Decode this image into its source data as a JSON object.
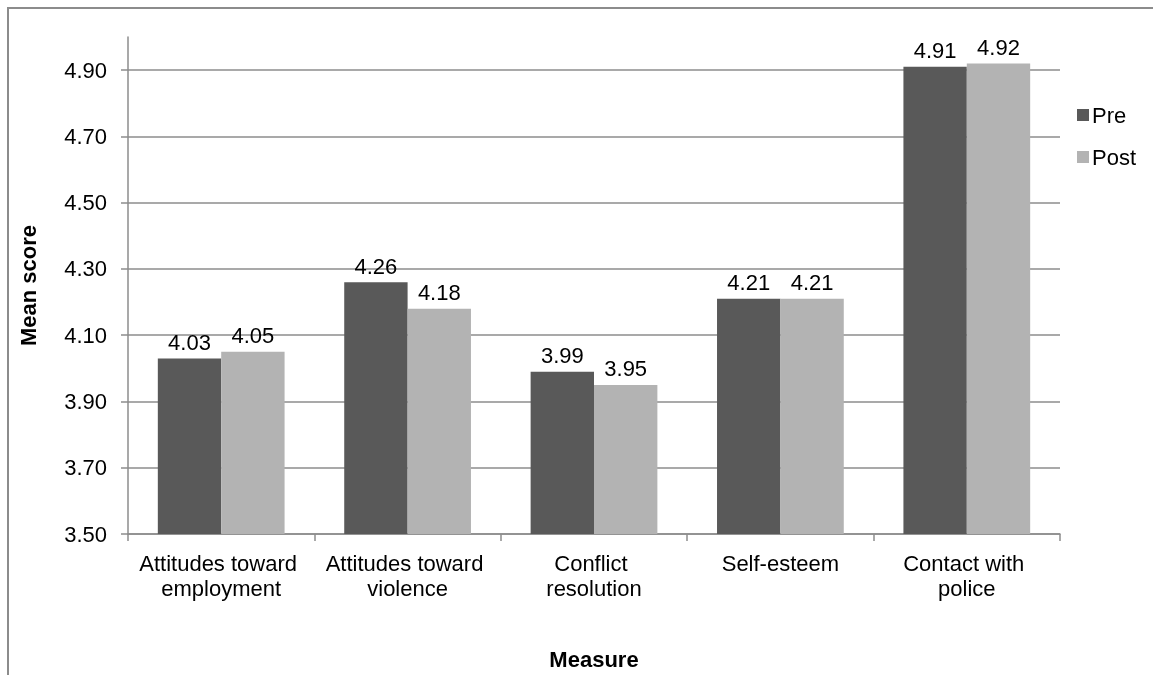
{
  "chart_data": {
    "type": "bar",
    "xlabel": "Measure",
    "ylabel": "Mean score",
    "categories": [
      "Attitudes toward employment",
      "Attitudes toward violence",
      "Conflict resolution",
      "Self-esteem",
      "Contact with police"
    ],
    "series": [
      {
        "name": "Pre",
        "color": "#595959",
        "values": [
          4.03,
          4.26,
          3.99,
          4.21,
          4.91
        ]
      },
      {
        "name": "Post",
        "color": "#b3b3b3",
        "values": [
          4.05,
          4.18,
          3.95,
          4.21,
          4.92
        ]
      }
    ],
    "ylim": [
      3.5,
      5.0
    ],
    "yticks": [
      {
        "value": 3.5,
        "label": "3.50"
      },
      {
        "value": 3.7,
        "label": "3.70"
      },
      {
        "value": 3.9,
        "label": "3.90"
      },
      {
        "value": 4.1,
        "label": "4.10"
      },
      {
        "value": 4.3,
        "label": "4.30"
      },
      {
        "value": 4.5,
        "label": "4.50"
      },
      {
        "value": 4.7,
        "label": "4.70"
      },
      {
        "value": 4.9,
        "label": "4.90"
      }
    ],
    "grid": "y",
    "legend": "right",
    "data_labels": true
  }
}
